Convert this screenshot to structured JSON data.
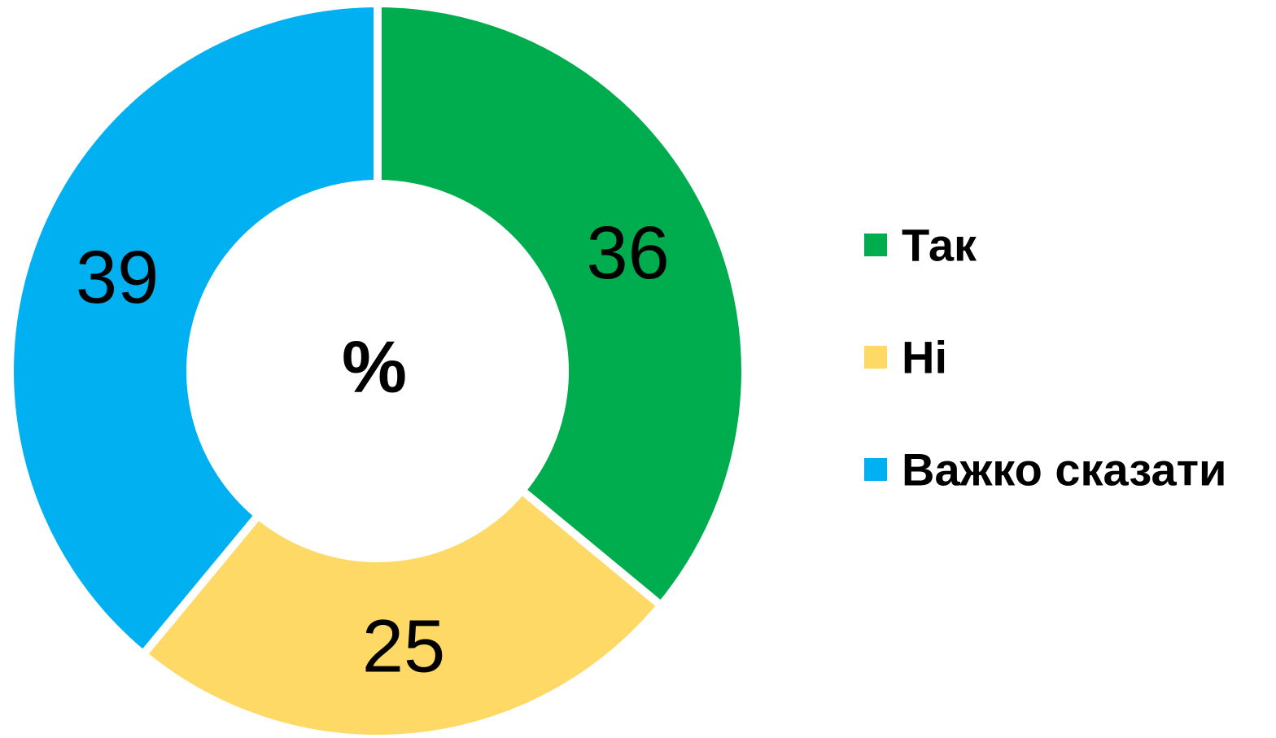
{
  "chart_data": {
    "type": "donut",
    "center_label": "%",
    "categories": [
      "Так",
      "Ні",
      "Важко сказати"
    ],
    "values": [
      36,
      25,
      39
    ],
    "colors": [
      "#00ad4e",
      "#ffd966",
      "#00b0f0"
    ],
    "legend": "right"
  }
}
